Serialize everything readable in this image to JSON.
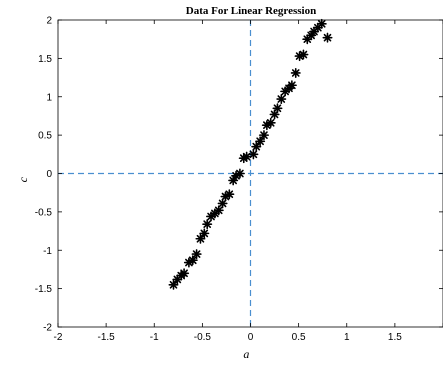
{
  "chart_data": {
    "type": "scatter",
    "title": "Data For Linear Regression",
    "xlabel": "a⃗",
    "ylabel": "c⃗",
    "xlim": [
      -2,
      2
    ],
    "ylim": [
      -2,
      2
    ],
    "x_ticks": [
      -2,
      -1.5,
      -1,
      -0.5,
      0,
      0.5,
      1,
      1.5,
      2
    ],
    "y_ticks": [
      -2,
      -1.5,
      -1,
      -0.5,
      0,
      0.5,
      1,
      1.5,
      2
    ],
    "x_tick_labels": [
      "-2",
      "-1.5",
      "-1",
      "-0.5",
      "0",
      "0.5",
      "1",
      "1.5",
      "2"
    ],
    "y_tick_labels": [
      "-2",
      "-1.5",
      "-1",
      "-0.5",
      "0",
      "0.5",
      "1",
      "1.5",
      "2"
    ],
    "grid": false,
    "marker": "asterisk",
    "marker_color": "#000000",
    "reference_lines": {
      "x": 0,
      "y": 0,
      "color": "#4a8fd0",
      "style": "dashed"
    },
    "series": [
      {
        "x": [
          -0.8,
          -0.76,
          -0.72,
          -0.69,
          -0.64,
          -0.6,
          -0.56,
          -0.52,
          -0.48,
          -0.45,
          -0.41,
          -0.37,
          -0.33,
          -0.29,
          -0.26,
          -0.22,
          -0.18,
          -0.15,
          -0.11,
          -0.07,
          -0.04,
          0.03,
          0.06,
          0.1,
          0.14,
          0.17,
          0.21,
          0.25,
          0.28,
          0.32,
          0.36,
          0.4,
          0.43,
          0.47,
          0.51,
          0.55,
          0.59,
          0.63,
          0.66,
          0.7,
          0.74,
          0.8
        ],
        "y": [
          -1.45,
          -1.38,
          -1.33,
          -1.3,
          -1.16,
          -1.13,
          -1.05,
          -0.85,
          -0.78,
          -0.66,
          -0.56,
          -0.52,
          -0.48,
          -0.39,
          -0.3,
          -0.27,
          -0.09,
          -0.03,
          0.0,
          0.2,
          0.22,
          0.25,
          0.35,
          0.42,
          0.5,
          0.63,
          0.66,
          0.77,
          0.85,
          0.97,
          1.07,
          1.11,
          1.15,
          1.31,
          1.53,
          1.55,
          1.75,
          1.8,
          1.85,
          1.9,
          1.95,
          1.77
        ]
      }
    ]
  }
}
